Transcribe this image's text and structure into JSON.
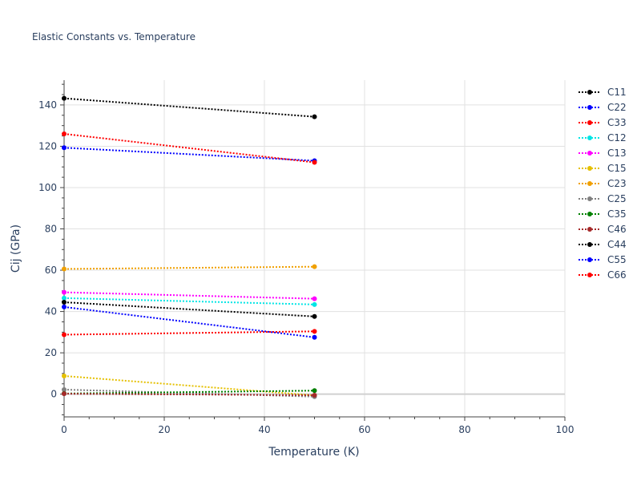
{
  "chart_data": {
    "type": "line",
    "title": "Elastic Constants vs. Temperature",
    "xlabel": "Temperature (K)",
    "ylabel": "Cij (GPa)",
    "xlim": [
      0,
      100
    ],
    "ylim": [
      -11,
      152
    ],
    "x_ticks": [
      0,
      20,
      40,
      60,
      80,
      100
    ],
    "y_ticks": [
      0,
      20,
      40,
      60,
      80,
      100,
      120,
      140
    ],
    "grid": true,
    "legend_position": "right",
    "x": [
      0,
      50
    ],
    "series": [
      {
        "name": "C11",
        "color": "#000000",
        "values": [
          143.2,
          134.3
        ]
      },
      {
        "name": "C22",
        "color": "#0000ff",
        "values": [
          119.3,
          113.0
        ]
      },
      {
        "name": "C33",
        "color": "#ff0000",
        "values": [
          126.0,
          112.2
        ]
      },
      {
        "name": "C12",
        "color": "#00e5e5",
        "values": [
          46.5,
          43.4
        ]
      },
      {
        "name": "C13",
        "color": "#ff00ff",
        "values": [
          49.3,
          46.2
        ]
      },
      {
        "name": "C15",
        "color": "#e5c000",
        "values": [
          8.8,
          -0.6
        ]
      },
      {
        "name": "C23",
        "color": "#f0a000",
        "values": [
          60.6,
          61.7
        ]
      },
      {
        "name": "C25",
        "color": "#808080",
        "values": [
          2.2,
          -1.2
        ]
      },
      {
        "name": "C35",
        "color": "#008000",
        "values": [
          0.3,
          1.7
        ]
      },
      {
        "name": "C46",
        "color": "#a52a2a",
        "values": [
          0.2,
          -0.5
        ]
      },
      {
        "name": "C44",
        "color": "#000000",
        "values": [
          44.5,
          37.6
        ]
      },
      {
        "name": "C55",
        "color": "#0000ff",
        "values": [
          42.2,
          27.5
        ]
      },
      {
        "name": "C66",
        "color": "#ff0000",
        "values": [
          28.8,
          30.4
        ]
      }
    ]
  }
}
